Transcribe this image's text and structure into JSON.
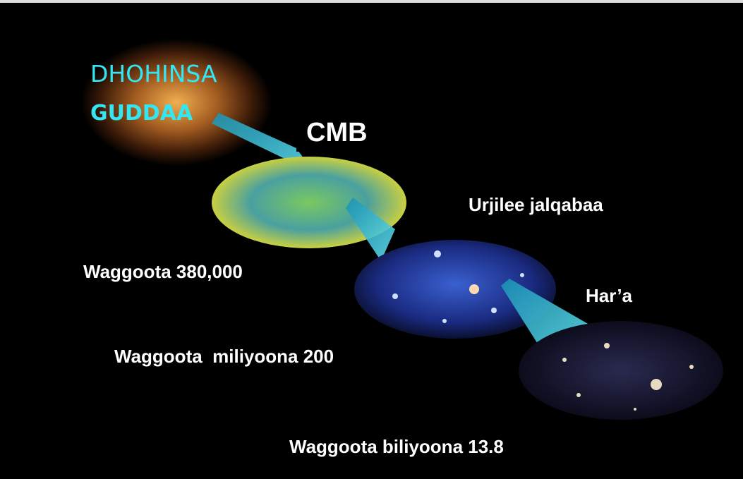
{
  "slide": {
    "labels": {
      "top_line1": "DHOHINSA",
      "top_line2": "GUDDAA",
      "cmb": "CMB",
      "early_stars": "Urjilee jalqabaa",
      "years_cmb": "Waggoota 380,000",
      "today": "Har’a",
      "years_stars": "Waggoota  miliyoona 200",
      "years_today": "Waggoota biliyoona 13.8"
    }
  }
}
